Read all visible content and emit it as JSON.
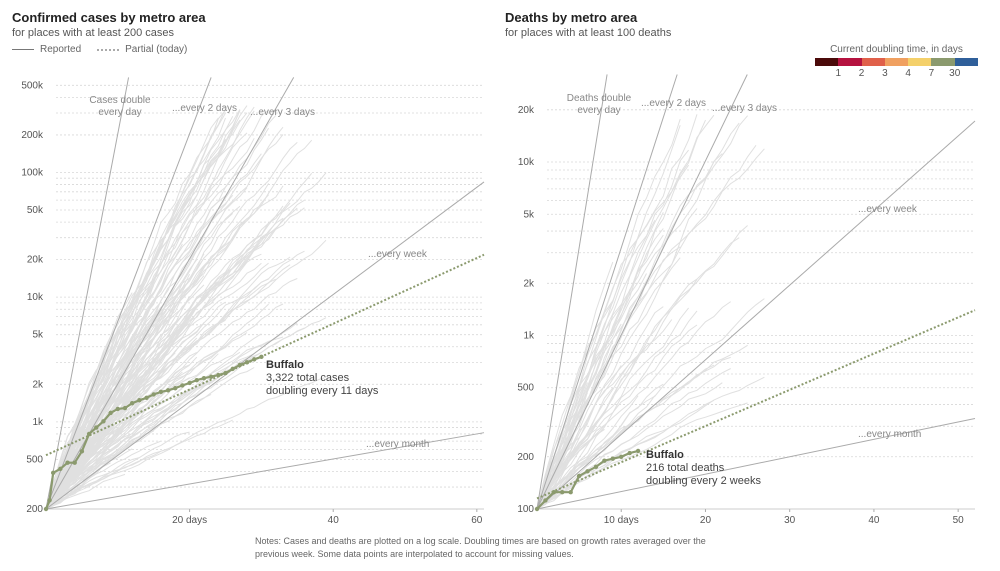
{
  "legend": {
    "reported": "Reported",
    "partial": "Partial (today)",
    "doubling_title": "Current doubling time, in days",
    "doubling_colors": [
      "#4b0a0a",
      "#b5123f",
      "#e0604a",
      "#f0a060",
      "#f4d06a",
      "#8b9a6e",
      "#2f5f9a"
    ],
    "doubling_labels": [
      "1",
      "2",
      "3",
      "4",
      "7",
      "30"
    ]
  },
  "notes": "Notes: Cases and deaths are plotted on a log scale. Doubling times are based on growth rates averaged over the previous week. Some data points are interpolated to account for missing values.",
  "chart_data": [
    {
      "type": "line",
      "title": "Confirmed cases by metro area",
      "subtitle": "for places with at least 200 cases",
      "yscale": "log",
      "xlim": [
        0,
        61
      ],
      "ylim": [
        200,
        500000
      ],
      "xticks": [
        20,
        40,
        60
      ],
      "xtick_labels": [
        "20 days",
        "40",
        "60"
      ],
      "yticks": [
        200,
        500,
        1000,
        2000,
        5000,
        10000,
        20000,
        50000,
        100000,
        200000,
        500000
      ],
      "ytick_labels": [
        "200",
        "500",
        "1k",
        "2k",
        "5k",
        "10k",
        "20k",
        "50k",
        "100k",
        "200k",
        "500k"
      ],
      "reference_lines": [
        {
          "label": "Cases double every day",
          "doubling_days": 1,
          "start": 200
        },
        {
          "label": "...every 2 days",
          "doubling_days": 2,
          "start": 200
        },
        {
          "label": "...every 3 days",
          "doubling_days": 3,
          "start": 200
        },
        {
          "label": "...every week",
          "doubling_days": 7,
          "start": 200
        },
        {
          "label": "...every month",
          "doubling_days": 30,
          "start": 200
        }
      ],
      "highlight": {
        "name": "Buffalo",
        "line1": "3,322 total cases",
        "line2": "doubling every 11 days",
        "color": "#8b9a6e",
        "x": [
          0,
          0.5,
          1,
          2,
          3,
          4,
          5,
          6,
          7,
          8,
          9,
          10,
          11,
          12,
          13,
          14,
          15,
          16,
          17,
          18,
          19,
          20,
          21,
          22,
          23,
          24,
          25,
          26,
          27,
          28,
          29,
          30
        ],
        "y": [
          200,
          235,
          390,
          420,
          470,
          470,
          580,
          800,
          900,
          1010,
          1180,
          1270,
          1290,
          1410,
          1490,
          1560,
          1660,
          1740,
          1790,
          1860,
          1960,
          2050,
          2160,
          2240,
          2300,
          2370,
          2460,
          2660,
          2860,
          3000,
          3170,
          3322
        ],
        "projection": {
          "doubling_days": 11,
          "x_start": 0,
          "y_start": 540,
          "x_end": 61,
          "y_end": 21900
        }
      },
      "background_series_count": 150
    },
    {
      "type": "line",
      "title": "Deaths by metro area",
      "subtitle": "for places with at least 100 deaths",
      "yscale": "log",
      "xlim": [
        0,
        52
      ],
      "ylim": [
        100,
        30000
      ],
      "xticks": [
        10,
        20,
        30,
        40,
        50
      ],
      "xtick_labels": [
        "10 days",
        "20",
        "30",
        "40",
        "50"
      ],
      "yticks": [
        100,
        200,
        500,
        1000,
        2000,
        5000,
        10000,
        20000
      ],
      "ytick_labels": [
        "100",
        "200",
        "500",
        "1k",
        "2k",
        "5k",
        "10k",
        "20k"
      ],
      "reference_lines": [
        {
          "label": "Deaths double every day",
          "doubling_days": 1,
          "start": 100
        },
        {
          "label": "...every 2 days",
          "doubling_days": 2,
          "start": 100
        },
        {
          "label": "...every 3 days",
          "doubling_days": 3,
          "start": 100
        },
        {
          "label": "...every week",
          "doubling_days": 7,
          "start": 100
        },
        {
          "label": "...every month",
          "doubling_days": 30,
          "start": 100
        }
      ],
      "highlight": {
        "name": "Buffalo",
        "line1": "216 total deaths",
        "line2": "doubling every 2 weeks",
        "color": "#8b9a6e",
        "x": [
          0,
          1,
          2,
          3,
          4,
          5,
          6,
          7,
          8,
          9,
          10,
          11,
          12
        ],
        "y": [
          100,
          112,
          125,
          125,
          125,
          155,
          165,
          175,
          190,
          195,
          200,
          210,
          216
        ],
        "projection": {
          "doubling_days": 14,
          "x_start": 0,
          "y_start": 115,
          "x_end": 52,
          "y_end": 1400
        }
      },
      "background_series_count": 60
    }
  ]
}
